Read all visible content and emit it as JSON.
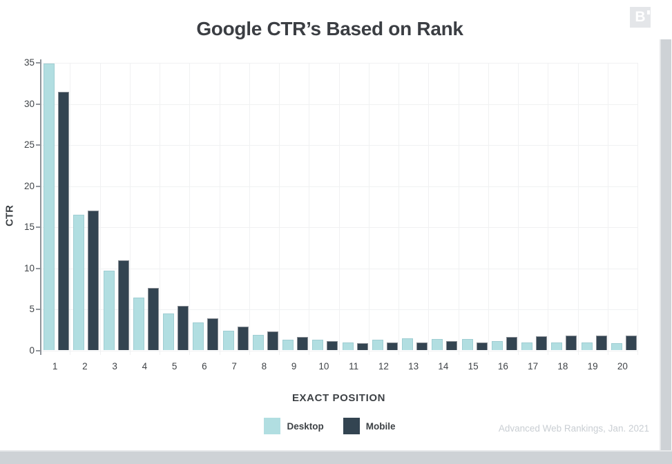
{
  "page": {
    "logo_letter": "B",
    "footer_credit": "Advanced Web Rankings, Jan. 2021"
  },
  "chart_data": {
    "type": "bar",
    "title": "Google CTR’s Based on Rank",
    "xlabel": "EXACT POSITION",
    "ylabel": "CTR",
    "categories": [
      1,
      2,
      3,
      4,
      5,
      6,
      7,
      8,
      9,
      10,
      11,
      12,
      13,
      14,
      15,
      16,
      17,
      18,
      19,
      20
    ],
    "series": [
      {
        "name": "Desktop",
        "color": "#b1dee1",
        "stroke": "#9ecdd2",
        "values": [
          34.9,
          16.5,
          9.7,
          6.4,
          4.5,
          3.4,
          2.4,
          1.9,
          1.3,
          1.3,
          1.0,
          1.3,
          1.5,
          1.4,
          1.4,
          1.1,
          1.0,
          1.0,
          1.0,
          0.9
        ]
      },
      {
        "name": "Mobile",
        "color": "#334451",
        "stroke": "#8b9097",
        "values": [
          31.5,
          17.0,
          11.0,
          7.6,
          5.4,
          3.9,
          2.9,
          2.3,
          1.6,
          1.1,
          0.9,
          1.0,
          1.0,
          1.1,
          1.0,
          1.6,
          1.7,
          1.8,
          1.8,
          1.8
        ]
      }
    ],
    "ylim": [
      0,
      35
    ],
    "yticks": [
      0,
      5,
      10,
      15,
      20,
      25,
      30,
      35
    ],
    "grid": true,
    "legend_position": "bottom"
  },
  "colors": {
    "grid": "#f0f1f2",
    "axis": "#8f949a",
    "text_dark": "#3d4145",
    "title": "#3b3e43",
    "credit": "#c9ced3",
    "scrollbar": "#ced2d6",
    "logo_bg": "#e4e6e9",
    "logo_letter": "#ffffff"
  }
}
